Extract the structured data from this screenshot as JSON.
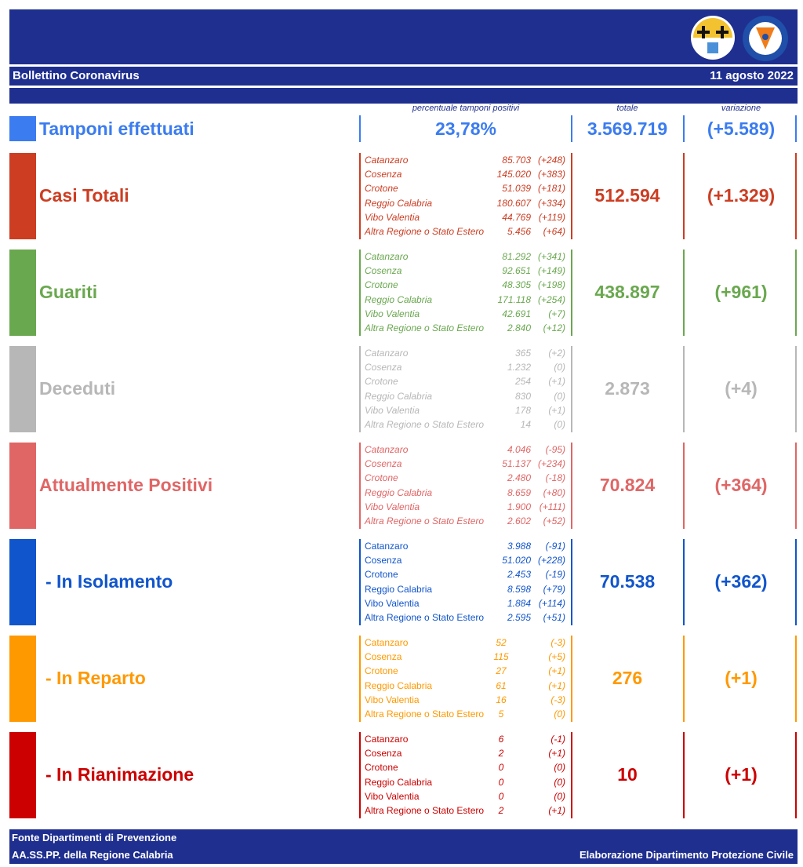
{
  "header": {
    "title": "Bollettino Coronavirus",
    "date": "11 agosto 2022"
  },
  "columns": {
    "percent_label": "percentuale tamponi positivi",
    "total_label": "totale",
    "variation_label": "variazione"
  },
  "tamponi": {
    "label": "Tamponi effettuati",
    "percent": "23,78%",
    "total": "3.569.719",
    "variation": "(+5.589)",
    "color": "#3b7cf0"
  },
  "sections": [
    {
      "label": "Casi Totali",
      "total": "512.594",
      "variation": "(+1.329)",
      "color": "#cc3d22",
      "rows": [
        {
          "name": "Catanzaro",
          "value": "85.703",
          "delta": "(+248)"
        },
        {
          "name": "Cosenza",
          "value": "145.020",
          "delta": "(+383)"
        },
        {
          "name": "Crotone",
          "value": "51.039",
          "delta": "(+181)"
        },
        {
          "name": "Reggio Calabria",
          "value": "180.607",
          "delta": "(+334)"
        },
        {
          "name": "Vibo Valentia",
          "value": "44.769",
          "delta": "(+119)"
        },
        {
          "name": "Altra Regione o Stato Estero",
          "value": "5.456",
          "delta": "(+64)"
        }
      ]
    },
    {
      "label": "Guariti",
      "total": "438.897",
      "variation": "(+961)",
      "color": "#6aa84f",
      "rows": [
        {
          "name": "Catanzaro",
          "value": "81.292",
          "delta": "(+341)"
        },
        {
          "name": "Cosenza",
          "value": "92.651",
          "delta": "(+149)"
        },
        {
          "name": "Crotone",
          "value": "48.305",
          "delta": "(+198)"
        },
        {
          "name": "Reggio Calabria",
          "value": "171.118",
          "delta": "(+254)"
        },
        {
          "name": "Vibo Valentia",
          "value": "42.691",
          "delta": "(+7)"
        },
        {
          "name": "Altra Regione o Stato Estero",
          "value": "2.840",
          "delta": "(+12)"
        }
      ]
    },
    {
      "label": "Deceduti",
      "total": "2.873",
      "variation": "(+4)",
      "color": "#b7b7b7",
      "rows": [
        {
          "name": "Catanzaro",
          "value": "365",
          "delta": "(+2)"
        },
        {
          "name": "Cosenza",
          "value": "1.232",
          "delta": "(0)"
        },
        {
          "name": "Crotone",
          "value": "254",
          "delta": "(+1)"
        },
        {
          "name": "Reggio Calabria",
          "value": "830",
          "delta": "(0)"
        },
        {
          "name": "Vibo Valentia",
          "value": "178",
          "delta": "(+1)"
        },
        {
          "name": "Altra Regione o Stato Estero",
          "value": "14",
          "delta": "(0)"
        }
      ]
    },
    {
      "label": "Attualmente Positivi",
      "total": "70.824",
      "variation": "(+364)",
      "color": "#e06666",
      "rows": [
        {
          "name": "Catanzaro",
          "value": "4.046",
          "delta": "(-95)"
        },
        {
          "name": "Cosenza",
          "value": "51.137",
          "delta": "(+234)"
        },
        {
          "name": "Crotone",
          "value": "2.480",
          "delta": "(-18)"
        },
        {
          "name": "Reggio Calabria",
          "value": "8.659",
          "delta": "(+80)"
        },
        {
          "name": "Vibo Valentia",
          "value": "1.900",
          "delta": "(+111)"
        },
        {
          "name": "Altra Regione o Stato Estero",
          "value": "2.602",
          "delta": "(+52)"
        }
      ]
    },
    {
      "label": "- In Isolamento",
      "total": "70.538",
      "variation": "(+362)",
      "color": "#1155cc",
      "rows": [
        {
          "name": "Catanzaro",
          "value": "3.988",
          "delta": "(-91)"
        },
        {
          "name": "Cosenza",
          "value": "51.020",
          "delta": "(+228)"
        },
        {
          "name": "Crotone",
          "value": "2.453",
          "delta": "(-19)"
        },
        {
          "name": "Reggio Calabria",
          "value": "8.598",
          "delta": "(+79)"
        },
        {
          "name": "Vibo Valentia",
          "value": "1.884",
          "delta": "(+114)"
        },
        {
          "name": "Altra Regione o Stato Estero",
          "value": "2.595",
          "delta": "(+51)"
        }
      ]
    },
    {
      "label": "- In Reparto",
      "total": "276",
      "variation": "(+1)",
      "color": "#ff9900",
      "rows": [
        {
          "name": "Catanzaro",
          "value": "52",
          "delta": "(-3)"
        },
        {
          "name": "Cosenza",
          "value": "115",
          "delta": "(+5)"
        },
        {
          "name": "Crotone",
          "value": "27",
          "delta": "(+1)"
        },
        {
          "name": "Reggio Calabria",
          "value": "61",
          "delta": "(+1)"
        },
        {
          "name": "Vibo Valentia",
          "value": "16",
          "delta": "(-3)"
        },
        {
          "name": "Altra Regione o Stato Estero",
          "value": "5",
          "delta": "(0)"
        }
      ]
    },
    {
      "label": "- In Rianimazione",
      "total": "10",
      "variation": "(+1)",
      "color": "#cc0000",
      "rows": [
        {
          "name": "Catanzaro",
          "value": "6",
          "delta": "(-1)"
        },
        {
          "name": "Cosenza",
          "value": "2",
          "delta": "(+1)"
        },
        {
          "name": "Crotone",
          "value": "0",
          "delta": "(0)"
        },
        {
          "name": "Reggio Calabria",
          "value": "0",
          "delta": "(0)"
        },
        {
          "name": "Vibo Valentia",
          "value": "0",
          "delta": "(0)"
        },
        {
          "name": "Altra Regione o Stato Estero",
          "value": "2",
          "delta": "(+1)"
        }
      ]
    }
  ],
  "footer": {
    "source_line1": "Fonte Dipartimenti di Prevenzione",
    "source_line2": "AA.SS.PP.  della Regione Calabria",
    "credit": "Elaborazione Dipartimento Protezione Civile"
  },
  "logos": {
    "region": "regione-calabria-logo",
    "civil_protection": "protezione-civile-calabria-logo"
  }
}
